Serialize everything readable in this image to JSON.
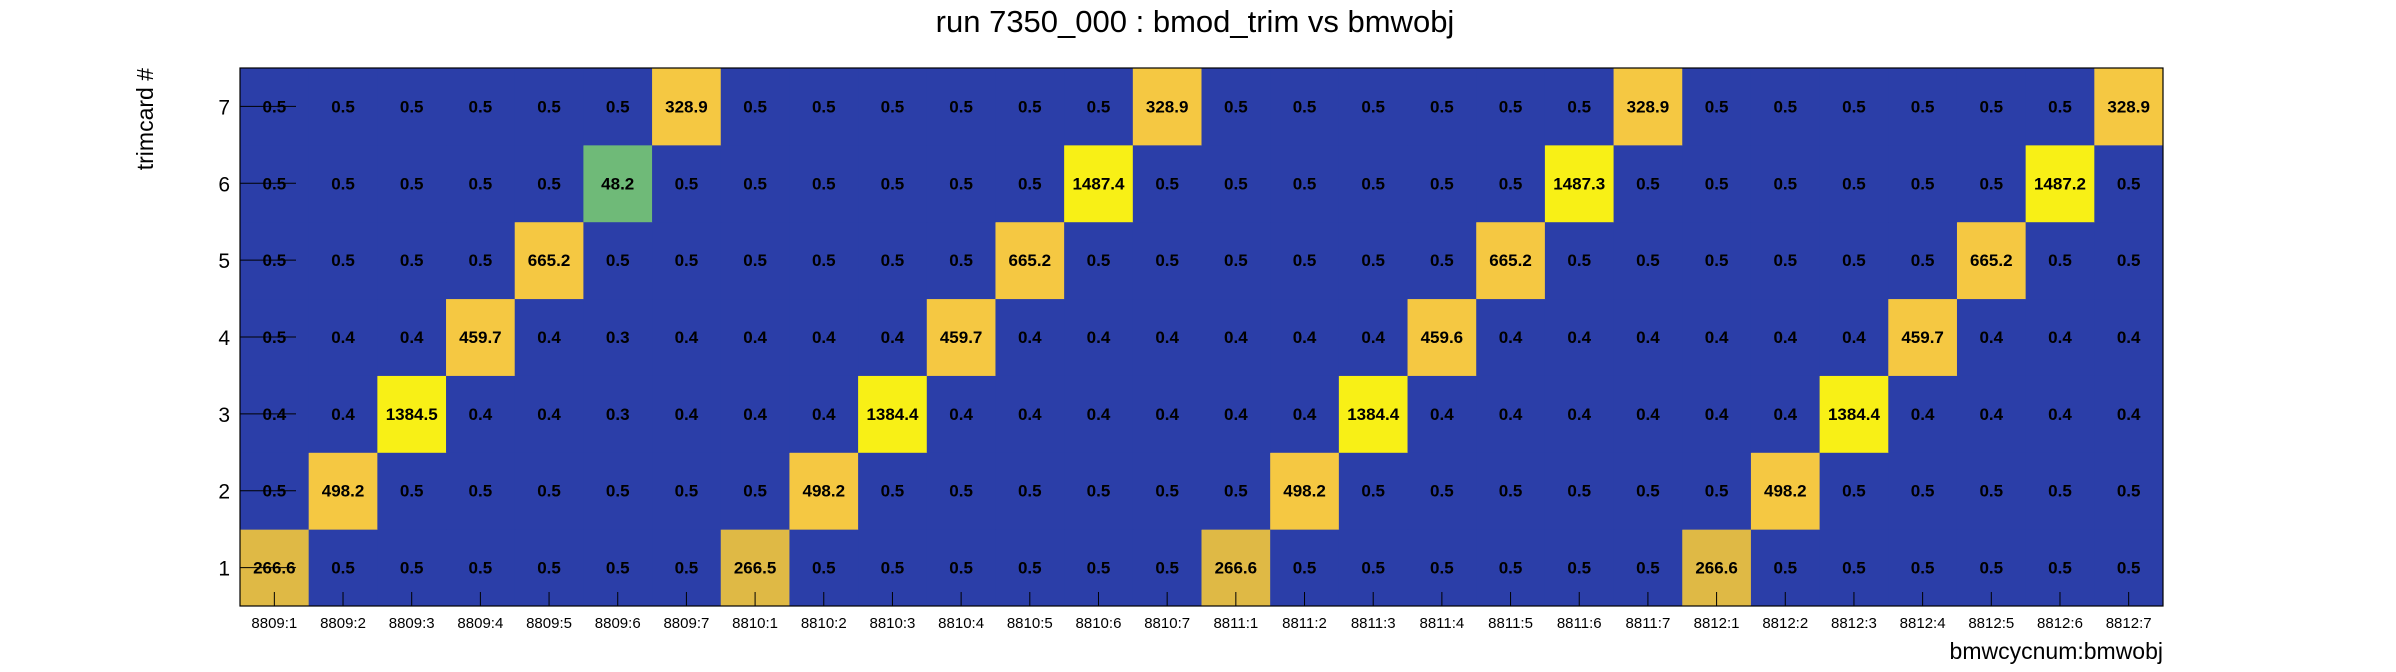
{
  "chart_data": {
    "type": "heatmap",
    "title": "run 7350_000 : bmod_trim vs bmwobj",
    "xlabel": "bmwcycnum:bmwobj",
    "ylabel": "trimcard #",
    "x_categories": [
      "8809:1",
      "8809:2",
      "8809:3",
      "8809:4",
      "8809:5",
      "8809:6",
      "8809:7",
      "8810:1",
      "8810:2",
      "8810:3",
      "8810:4",
      "8810:5",
      "8810:6",
      "8810:7",
      "8811:1",
      "8811:2",
      "8811:3",
      "8811:4",
      "8811:5",
      "8811:6",
      "8811:7",
      "8812:1",
      "8812:2",
      "8812:3",
      "8812:4",
      "8812:5",
      "8812:6",
      "8812:7"
    ],
    "y_categories": [
      "1",
      "2",
      "3",
      "4",
      "5",
      "6",
      "7"
    ],
    "values": [
      [
        266.6,
        0.5,
        0.5,
        0.5,
        0.5,
        0.5,
        0.5,
        266.5,
        0.5,
        0.5,
        0.5,
        0.5,
        0.5,
        0.5,
        266.6,
        0.5,
        0.5,
        0.5,
        0.5,
        0.5,
        0.5,
        266.6,
        0.5,
        0.5,
        0.5,
        0.5,
        0.5,
        0.5
      ],
      [
        0.5,
        498.2,
        0.5,
        0.5,
        0.5,
        0.5,
        0.5,
        0.5,
        498.2,
        0.5,
        0.5,
        0.5,
        0.5,
        0.5,
        0.5,
        498.2,
        0.5,
        0.5,
        0.5,
        0.5,
        0.5,
        0.5,
        498.2,
        0.5,
        0.5,
        0.5,
        0.5,
        0.5
      ],
      [
        0.4,
        0.4,
        1384.5,
        0.4,
        0.4,
        0.3,
        0.4,
        0.4,
        0.4,
        1384.4,
        0.4,
        0.4,
        0.4,
        0.4,
        0.4,
        0.4,
        1384.4,
        0.4,
        0.4,
        0.4,
        0.4,
        0.4,
        0.4,
        1384.4,
        0.4,
        0.4,
        0.4,
        0.4
      ],
      [
        0.5,
        0.4,
        0.4,
        459.7,
        0.4,
        0.3,
        0.4,
        0.4,
        0.4,
        0.4,
        459.7,
        0.4,
        0.4,
        0.4,
        0.4,
        0.4,
        0.4,
        459.6,
        0.4,
        0.4,
        0.4,
        0.4,
        0.4,
        0.4,
        459.7,
        0.4,
        0.4,
        0.4
      ],
      [
        0.5,
        0.5,
        0.5,
        0.5,
        665.2,
        0.5,
        0.5,
        0.5,
        0.5,
        0.5,
        0.5,
        665.2,
        0.5,
        0.5,
        0.5,
        0.5,
        0.5,
        0.5,
        665.2,
        0.5,
        0.5,
        0.5,
        0.5,
        0.5,
        0.5,
        665.2,
        0.5,
        0.5
      ],
      [
        0.5,
        0.5,
        0.5,
        0.5,
        0.5,
        48.2,
        0.5,
        0.5,
        0.5,
        0.5,
        0.5,
        0.5,
        1487.4,
        0.5,
        0.5,
        0.5,
        0.5,
        0.5,
        0.5,
        1487.3,
        0.5,
        0.5,
        0.5,
        0.5,
        0.5,
        0.5,
        1487.2,
        0.5
      ],
      [
        0.5,
        0.5,
        0.5,
        0.5,
        0.5,
        0.5,
        328.9,
        0.5,
        0.5,
        0.5,
        0.5,
        0.5,
        0.5,
        328.9,
        0.5,
        0.5,
        0.5,
        0.5,
        0.5,
        0.5,
        328.9,
        0.5,
        0.5,
        0.5,
        0.5,
        0.5,
        0.5,
        328.9
      ]
    ],
    "grid": false,
    "legend": "none",
    "colors": {
      "background_cell": "#2b3ea8",
      "low": "#6fba78",
      "mid_low": "#dfb945",
      "mid": "#f5c842",
      "high": "#f8f016"
    }
  }
}
